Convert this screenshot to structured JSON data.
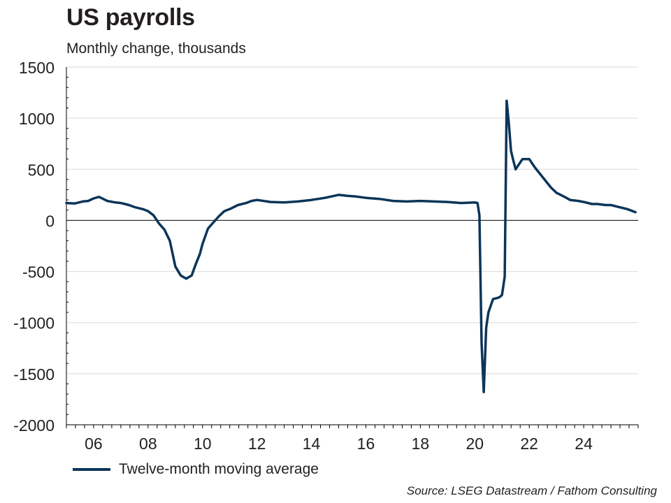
{
  "title": "US payrolls",
  "subtitle": "Monthly change, thousands",
  "source": "Source: LSEG Datastream / Fathom Consulting",
  "colors": {
    "series": "#0c3559",
    "grid": "#d9d9d9",
    "axis": "#000000"
  },
  "chart_data": {
    "type": "line",
    "title": "US payrolls",
    "subtitle": "Monthly change, thousands",
    "ylim": [
      -2000,
      1500
    ],
    "yticks": [
      -2000,
      -1500,
      -1000,
      -500,
      0,
      500,
      1000,
      1500
    ],
    "ytick_labels": [
      "-2000",
      "-1500",
      "-1000",
      "-500",
      "0",
      "500",
      "1000",
      "1500"
    ],
    "xlim": [
      2005.0,
      2026.0
    ],
    "xticks": [
      2006,
      2008,
      2010,
      2012,
      2014,
      2016,
      2018,
      2020,
      2022,
      2024
    ],
    "xtick_labels": [
      "06",
      "08",
      "10",
      "12",
      "14",
      "16",
      "18",
      "20",
      "22",
      "24"
    ],
    "grid": "horizontal",
    "legend": "bottom-left",
    "series": [
      {
        "name": "Twelve-month moving average",
        "color": "#0c3559",
        "x": [
          2005.0,
          2005.3,
          2005.6,
          2005.8,
          2006.0,
          2006.2,
          2006.5,
          2006.8,
          2007.0,
          2007.3,
          2007.5,
          2007.8,
          2008.0,
          2008.2,
          2008.4,
          2008.6,
          2008.8,
          2009.0,
          2009.2,
          2009.4,
          2009.6,
          2009.75,
          2009.9,
          2010.0,
          2010.2,
          2010.4,
          2010.6,
          2010.8,
          2011.0,
          2011.3,
          2011.6,
          2011.8,
          2012.0,
          2012.5,
          2013.0,
          2013.5,
          2014.0,
          2014.5,
          2015.0,
          2015.3,
          2015.6,
          2016.0,
          2016.5,
          2017.0,
          2017.5,
          2018.0,
          2018.5,
          2019.0,
          2019.5,
          2020.0,
          2020.1,
          2020.17,
          2020.25,
          2020.33,
          2020.42,
          2020.5,
          2020.67,
          2020.83,
          2020.92,
          2021.0,
          2021.1,
          2021.17,
          2021.25,
          2021.33,
          2021.42,
          2021.5,
          2021.75,
          2022.0,
          2022.2,
          2022.5,
          2022.8,
          2023.0,
          2023.3,
          2023.5,
          2023.8,
          2024.0,
          2024.3,
          2024.5,
          2024.8,
          2025.0,
          2025.3,
          2025.6,
          2025.9
        ],
        "values": [
          170,
          165,
          185,
          190,
          215,
          230,
          190,
          175,
          170,
          150,
          130,
          110,
          90,
          50,
          -30,
          -90,
          -200,
          -450,
          -540,
          -570,
          -540,
          -430,
          -330,
          -230,
          -80,
          -20,
          40,
          90,
          110,
          150,
          170,
          190,
          200,
          180,
          175,
          185,
          200,
          220,
          250,
          240,
          235,
          220,
          210,
          190,
          185,
          190,
          185,
          180,
          170,
          175,
          170,
          50,
          -1200,
          -1680,
          -1050,
          -900,
          -770,
          -760,
          -750,
          -730,
          -550,
          1170,
          950,
          680,
          580,
          500,
          600,
          600,
          520,
          420,
          320,
          270,
          230,
          200,
          190,
          180,
          160,
          160,
          150,
          150,
          130,
          110,
          80
        ]
      }
    ]
  }
}
